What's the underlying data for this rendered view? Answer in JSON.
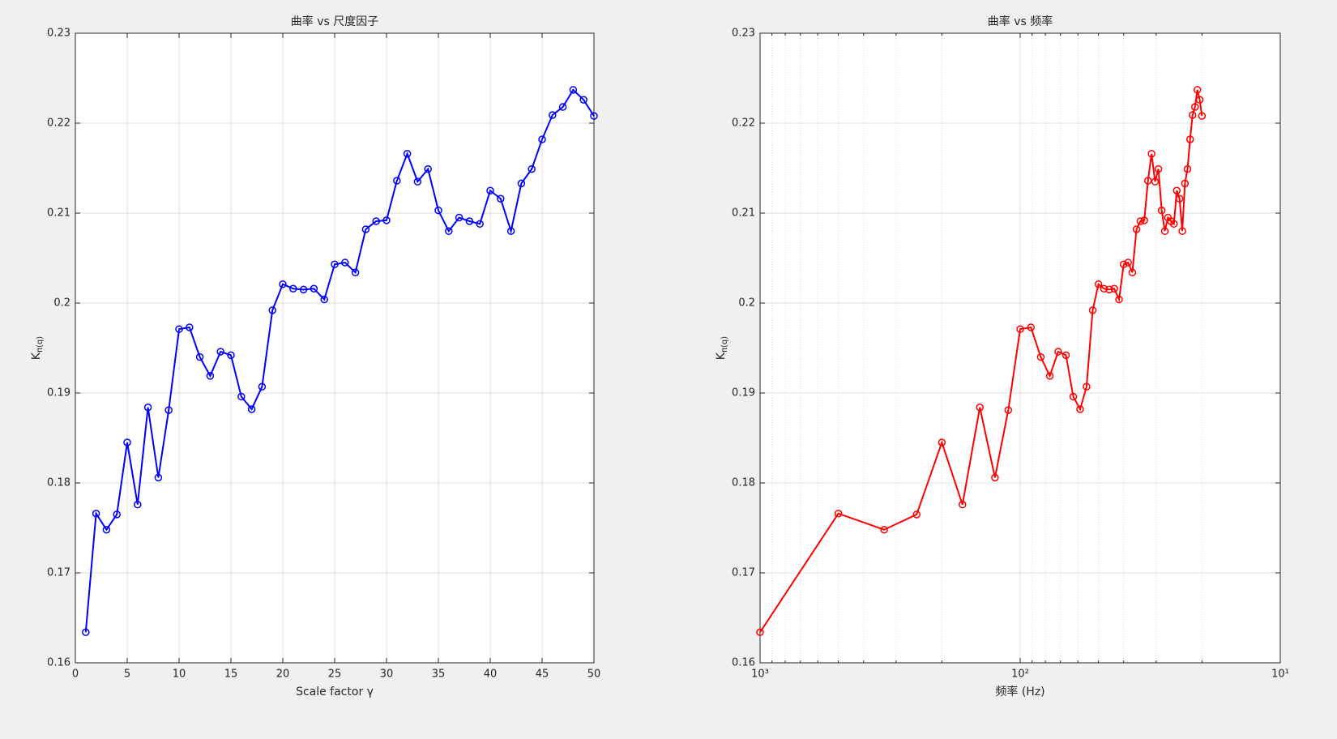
{
  "chart_data": [
    {
      "type": "line",
      "title": "曲率 vs 尺度因子",
      "xlabel": "Scale factor γ",
      "ylabel": {
        "base": "K",
        "subscript": "π(q)"
      },
      "color": "#0000ff",
      "marker": "circle",
      "grid": true,
      "x": [
        1,
        2,
        3,
        4,
        5,
        6,
        7,
        8,
        9,
        10,
        11,
        12,
        13,
        14,
        15,
        16,
        17,
        18,
        19,
        20,
        21,
        22,
        23,
        24,
        25,
        26,
        27,
        28,
        29,
        30,
        31,
        32,
        33,
        34,
        35,
        36,
        37,
        38,
        39,
        40,
        41,
        42,
        43,
        44,
        45,
        46,
        47,
        48,
        49,
        50
      ],
      "values": [
        0.1634,
        0.1766,
        0.1748,
        0.1765,
        0.1845,
        0.1776,
        0.1884,
        0.1806,
        0.1881,
        0.1971,
        0.1973,
        0.194,
        0.1919,
        0.1946,
        0.1942,
        0.1896,
        0.1882,
        0.1907,
        0.1992,
        0.2021,
        0.2016,
        0.2015,
        0.2016,
        0.2004,
        0.2043,
        0.2045,
        0.2034,
        0.2082,
        0.2091,
        0.2092,
        0.2136,
        0.2166,
        0.2135,
        0.2149,
        0.2103,
        0.208,
        0.2095,
        0.2091,
        0.2088,
        0.2125,
        0.2116,
        0.208,
        0.2133,
        0.2149,
        0.2182,
        0.2209,
        0.2218,
        0.2237,
        0.2226,
        0.2208
      ],
      "xlim": [
        0,
        50
      ],
      "xticks": [
        0,
        5,
        10,
        15,
        20,
        25,
        30,
        35,
        40,
        45,
        50
      ],
      "ylim": [
        0.16,
        0.23
      ],
      "yticks": [
        0.16,
        0.17,
        0.18,
        0.19,
        0.2,
        0.21,
        0.22,
        0.23
      ]
    },
    {
      "type": "line",
      "title": "曲率 vs 频率",
      "xlabel": "频率 (Hz)",
      "ylabel": {
        "base": "K",
        "subscript": "π(q)"
      },
      "color": "#ff0000",
      "marker": "circle",
      "grid": true,
      "xscale": "log",
      "xreversed": true,
      "x": [
        1000,
        500,
        333.3,
        250,
        200,
        166.7,
        142.9,
        125,
        111.1,
        100,
        90.91,
        83.33,
        76.92,
        71.43,
        66.67,
        62.5,
        58.82,
        55.56,
        52.63,
        50,
        47.62,
        45.45,
        43.48,
        41.67,
        40,
        38.46,
        37.04,
        35.71,
        34.48,
        33.33,
        32.26,
        31.25,
        30.3,
        29.41,
        28.57,
        27.78,
        27.03,
        26.32,
        25.64,
        25,
        24.39,
        23.81,
        23.26,
        22.73,
        22.22,
        21.74,
        21.28,
        20.83,
        20.41,
        20
      ],
      "values": [
        0.1634,
        0.1766,
        0.1748,
        0.1765,
        0.1845,
        0.1776,
        0.1884,
        0.1806,
        0.1881,
        0.1971,
        0.1973,
        0.194,
        0.1919,
        0.1946,
        0.1942,
        0.1896,
        0.1882,
        0.1907,
        0.1992,
        0.2021,
        0.2016,
        0.2015,
        0.2016,
        0.2004,
        0.2043,
        0.2045,
        0.2034,
        0.2082,
        0.2091,
        0.2092,
        0.2136,
        0.2166,
        0.2135,
        0.2149,
        0.2103,
        0.208,
        0.2095,
        0.2091,
        0.2088,
        0.2125,
        0.2116,
        0.208,
        0.2133,
        0.2149,
        0.2182,
        0.2209,
        0.2218,
        0.2237,
        0.2226,
        0.2208
      ],
      "xlim": [
        1000,
        10
      ],
      "xticks": [
        {
          "value": 1000,
          "label": "10³"
        },
        {
          "value": 100,
          "label": "10²"
        },
        {
          "value": 10,
          "label": "10¹"
        }
      ],
      "xminorticks": [
        900,
        800,
        700,
        600,
        500,
        400,
        300,
        200,
        90,
        80,
        70,
        60,
        50,
        40,
        30,
        20
      ],
      "ylim": [
        0.16,
        0.23
      ],
      "yticks": [
        0.16,
        0.17,
        0.18,
        0.19,
        0.2,
        0.21,
        0.22,
        0.23
      ]
    }
  ]
}
